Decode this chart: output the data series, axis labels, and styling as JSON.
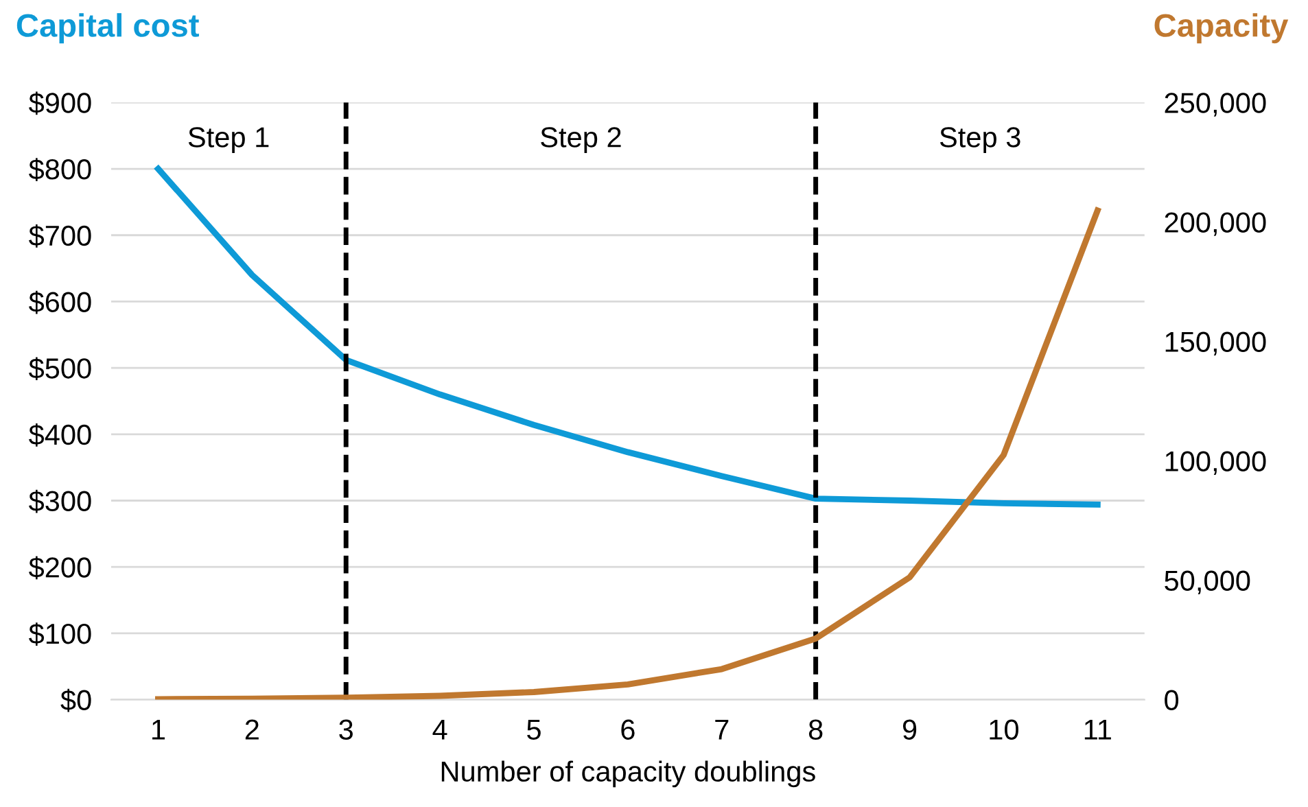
{
  "chart_data": {
    "type": "line",
    "xlabel": "Number of capacity doublings",
    "ylabel": "Capital cost",
    "y2label": "Capacity",
    "categories": [
      "1",
      "2",
      "3",
      "4",
      "5",
      "6",
      "7",
      "8",
      "9",
      "10",
      "11"
    ],
    "series": [
      {
        "name": null,
        "color": "#0e9ad7",
        "values": [
          800,
          640,
          512,
          460,
          414,
          373,
          337,
          303,
          300,
          296,
          294
        ]
      },
      {
        "name": null,
        "color": "#c0782f",
        "axis": "y2",
        "values": [
          200,
          400,
          800,
          1600,
          3200,
          6400,
          12800,
          25600,
          51200,
          102400,
          204800
        ]
      }
    ],
    "ylim": [
      0,
      900
    ],
    "yticks": [
      {
        "value": 0,
        "label": "$0"
      },
      {
        "value": 100,
        "label": "$100"
      },
      {
        "value": 200,
        "label": "$200"
      },
      {
        "value": 300,
        "label": "$300"
      },
      {
        "value": 400,
        "label": "$400"
      },
      {
        "value": 500,
        "label": "$500"
      },
      {
        "value": 600,
        "label": "$600"
      },
      {
        "value": 700,
        "label": "$700"
      },
      {
        "value": 800,
        "label": "$800"
      },
      {
        "value": 900,
        "label": "$900"
      }
    ],
    "y2lim": [
      0,
      250000
    ],
    "y2ticks": [
      0,
      {
        "value": 50000,
        "label": "50,000"
      },
      {
        "value": 100000,
        "label": "100,000"
      },
      {
        "value": 150000,
        "label": "150,000"
      },
      {
        "value": 200000,
        "label": "200,000"
      },
      {
        "value": 250000,
        "label": "250,000"
      }
    ],
    "ref_lines": [
      {
        "axis": "x",
        "value": "3",
        "color": "#000000",
        "line_style": "dashed"
      },
      {
        "axis": "x",
        "value": "8",
        "color": "#000000",
        "line_style": "dashed"
      }
    ],
    "annotations": [
      "Step 1",
      "Step 2",
      "Step 3"
    ],
    "grid": "y",
    "legend": false,
    "marker": "none",
    "line_style": "solid"
  }
}
